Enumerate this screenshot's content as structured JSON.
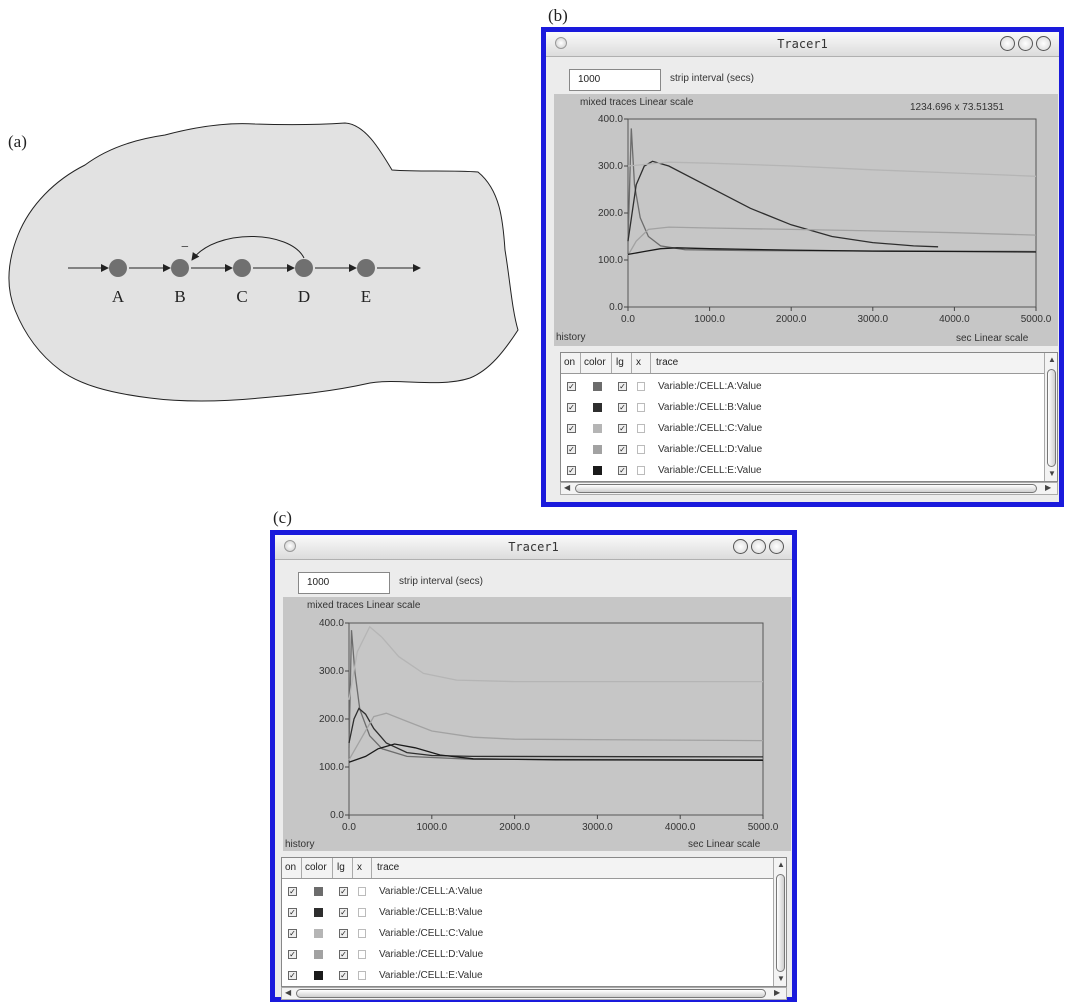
{
  "panels": {
    "a": "(a)",
    "b": "(b)",
    "c": "(c)"
  },
  "diagram": {
    "nodes": [
      "A",
      "B",
      "C",
      "D",
      "E"
    ],
    "feedback_sign": "−",
    "colors": {
      "blob_fill": "#e2e2e2",
      "node_fill": "#707070",
      "line": "#222222"
    }
  },
  "window_b": {
    "title": "Tracer1",
    "strip_interval_value": "1000",
    "strip_interval_label": "strip interval (secs)",
    "plot_header": "mixed traces  Linear scale",
    "cursor_readout": "1234.696  x  73.51351",
    "x_tick_labels": [
      "0.0",
      "1000.0",
      "2000.0",
      "3000.0",
      "4000.0",
      "5000.0"
    ],
    "y_tick_labels": [
      "400.0",
      "300.0",
      "200.0",
      "100.0",
      "0.0"
    ],
    "history_label": "history",
    "x_axis_caption": "sec  Linear scale",
    "columns": [
      "on",
      "color",
      "lg",
      "x",
      "trace"
    ],
    "traces": [
      {
        "name": "Variable:/CELL:A:Value",
        "color": "#6c6c6c"
      },
      {
        "name": "Variable:/CELL:B:Value",
        "color": "#2e2e2e"
      },
      {
        "name": "Variable:/CELL:C:Value",
        "color": "#b5b5b5"
      },
      {
        "name": "Variable:/CELL:D:Value",
        "color": "#a2a2a2"
      },
      {
        "name": "Variable:/CELL:E:Value",
        "color": "#1a1a1a"
      }
    ]
  },
  "window_c": {
    "title": "Tracer1",
    "strip_interval_value": "1000",
    "strip_interval_label": "strip interval (secs)",
    "plot_header": "mixed traces  Linear scale",
    "x_tick_labels": [
      "0.0",
      "1000.0",
      "2000.0",
      "3000.0",
      "4000.0",
      "5000.0"
    ],
    "y_tick_labels": [
      "400.0",
      "300.0",
      "200.0",
      "100.0",
      "0.0"
    ],
    "history_label": "history",
    "x_axis_caption": "sec  Linear scale",
    "columns": [
      "on",
      "color",
      "lg",
      "x",
      "trace"
    ],
    "traces": [
      {
        "name": "Variable:/CELL:A:Value",
        "color": "#6c6c6c"
      },
      {
        "name": "Variable:/CELL:B:Value",
        "color": "#2e2e2e"
      },
      {
        "name": "Variable:/CELL:C:Value",
        "color": "#b5b5b5"
      },
      {
        "name": "Variable:/CELL:D:Value",
        "color": "#a2a2a2"
      },
      {
        "name": "Variable:/CELL:E:Value",
        "color": "#1a1a1a"
      }
    ]
  },
  "chart_data": [
    {
      "type": "line",
      "xlim": [
        0,
        5000
      ],
      "ylim": [
        0,
        400
      ],
      "grid": false,
      "series": [
        {
          "name": "Variable:/CELL:A:Value",
          "color": "#6c6c6c",
          "points": [
            [
              0,
              140
            ],
            [
              40,
              380
            ],
            [
              80,
              260
            ],
            [
              150,
              190
            ],
            [
              250,
              150
            ],
            [
              400,
              130
            ],
            [
              700,
              122
            ],
            [
              1500,
              120
            ],
            [
              5000,
              118
            ]
          ]
        },
        {
          "name": "Variable:/CELL:B:Value",
          "color": "#2e2e2e",
          "points": [
            [
              0,
              140
            ],
            [
              100,
              260
            ],
            [
              200,
              300
            ],
            [
              300,
              310
            ],
            [
              500,
              300
            ],
            [
              1000,
              255
            ],
            [
              1500,
              210
            ],
            [
              2000,
              175
            ],
            [
              2500,
              150
            ],
            [
              3000,
              137
            ],
            [
              3500,
              130
            ],
            [
              3800,
              128
            ]
          ]
        },
        {
          "name": "Variable:/CELL:C:Value",
          "color": "#b5b5b5",
          "points": [
            [
              0,
              300
            ],
            [
              500,
              308
            ],
            [
              1000,
              306
            ],
            [
              2000,
              300
            ],
            [
              3000,
              292
            ],
            [
              4000,
              285
            ],
            [
              5000,
              278
            ]
          ]
        },
        {
          "name": "Variable:/CELL:D:Value",
          "color": "#a2a2a2",
          "points": [
            [
              0,
              110
            ],
            [
              100,
              140
            ],
            [
              250,
              165
            ],
            [
              500,
              170
            ],
            [
              1000,
              168
            ],
            [
              2000,
              165
            ],
            [
              3000,
              162
            ],
            [
              4000,
              158
            ],
            [
              5000,
              153
            ]
          ]
        },
        {
          "name": "Variable:/CELL:E:Value",
          "color": "#1a1a1a",
          "points": [
            [
              0,
              112
            ],
            [
              200,
              118
            ],
            [
              400,
              124
            ],
            [
              600,
              126
            ],
            [
              1000,
              124
            ],
            [
              2000,
              121
            ],
            [
              3000,
              119
            ],
            [
              4000,
              118
            ],
            [
              5000,
              117
            ]
          ]
        }
      ]
    },
    {
      "type": "line",
      "xlim": [
        0,
        5000
      ],
      "ylim": [
        0,
        400
      ],
      "grid": false,
      "series": [
        {
          "name": "Variable:/CELL:A:Value",
          "color": "#6c6c6c",
          "points": [
            [
              0,
              140
            ],
            [
              30,
              385
            ],
            [
              70,
              300
            ],
            [
              130,
              220
            ],
            [
              250,
              165
            ],
            [
              400,
              138
            ],
            [
              700,
              122
            ],
            [
              1500,
              116
            ],
            [
              5000,
              115
            ]
          ]
        },
        {
          "name": "Variable:/CELL:B:Value",
          "color": "#2e2e2e",
          "points": [
            [
              0,
              150
            ],
            [
              60,
              200
            ],
            [
              120,
              222
            ],
            [
              200,
              210
            ],
            [
              300,
              180
            ],
            [
              450,
              150
            ],
            [
              700,
              130
            ],
            [
              1000,
              124
            ],
            [
              1500,
              122
            ],
            [
              5000,
              121
            ]
          ]
        },
        {
          "name": "Variable:/CELL:C:Value",
          "color": "#b5b5b5",
          "points": [
            [
              0,
              240
            ],
            [
              100,
              340
            ],
            [
              250,
              392
            ],
            [
              400,
              370
            ],
            [
              600,
              330
            ],
            [
              900,
              295
            ],
            [
              1300,
              281
            ],
            [
              2000,
              278
            ],
            [
              5000,
              278
            ]
          ]
        },
        {
          "name": "Variable:/CELL:D:Value",
          "color": "#a2a2a2",
          "points": [
            [
              0,
              115
            ],
            [
              150,
              160
            ],
            [
              300,
              205
            ],
            [
              450,
              212
            ],
            [
              700,
              195
            ],
            [
              1000,
              175
            ],
            [
              1500,
              162
            ],
            [
              2000,
              158
            ],
            [
              5000,
              155
            ]
          ]
        },
        {
          "name": "Variable:/CELL:E:Value",
          "color": "#1a1a1a",
          "points": [
            [
              0,
              110
            ],
            [
              200,
              122
            ],
            [
              350,
              138
            ],
            [
              550,
              148
            ],
            [
              800,
              140
            ],
            [
              1100,
              125
            ],
            [
              1500,
              117
            ],
            [
              2500,
              115
            ],
            [
              5000,
              114
            ]
          ]
        }
      ]
    }
  ]
}
